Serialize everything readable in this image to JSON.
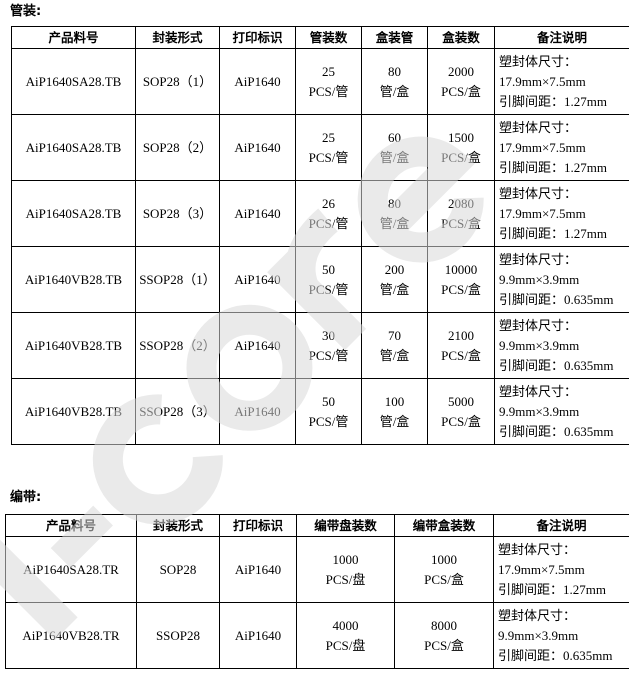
{
  "tube_section": {
    "title": "管装:",
    "headers": [
      "产品料号",
      "封装形式",
      "打印标识",
      "管装数",
      "盒装管",
      "盒装数",
      "备注说明"
    ],
    "rows": [
      {
        "part": "AiP1640SA28.TB",
        "package": "SOP28（1）",
        "mark": "AiP1640",
        "per_tube": [
          "25",
          "PCS/管"
        ],
        "tubes_per_box": [
          "80",
          "管/盒"
        ],
        "per_box": [
          "2000",
          "PCS/盒"
        ],
        "note": [
          "塑封体尺寸：",
          "17.9mm×7.5mm",
          "引脚间距：1.27mm"
        ]
      },
      {
        "part": "AiP1640SA28.TB",
        "package": "SOP28（2）",
        "mark": "AiP1640",
        "per_tube": [
          "25",
          "PCS/管"
        ],
        "tubes_per_box": [
          "60",
          "管/盒"
        ],
        "per_box": [
          "1500",
          "PCS/盒"
        ],
        "note": [
          "塑封体尺寸：",
          "17.9mm×7.5mm",
          "引脚间距：1.27mm"
        ]
      },
      {
        "part": "AiP1640SA28.TB",
        "package": "SOP28（3）",
        "mark": "AiP1640",
        "per_tube": [
          "26",
          "PCS/管"
        ],
        "tubes_per_box": [
          "80",
          "管/盒"
        ],
        "per_box": [
          "2080",
          "PCS/盒"
        ],
        "note": [
          "塑封体尺寸：",
          "17.9mm×7.5mm",
          "引脚间距：1.27mm"
        ]
      },
      {
        "part": "AiP1640VB28.TB",
        "package": "SSOP28（1）",
        "mark": "AiP1640",
        "per_tube": [
          "50",
          "PCS/管"
        ],
        "tubes_per_box": [
          "200",
          "管/盒"
        ],
        "per_box": [
          "10000",
          "PCS/盒"
        ],
        "note": [
          "塑封体尺寸：",
          "9.9mm×3.9mm",
          "引脚间距：0.635mm"
        ]
      },
      {
        "part": "AiP1640VB28.TB",
        "package": "SSOP28（2）",
        "mark": "AiP1640",
        "per_tube": [
          "30",
          "PCS/管"
        ],
        "tubes_per_box": [
          "70",
          "管/盒"
        ],
        "per_box": [
          "2100",
          "PCS/盒"
        ],
        "note": [
          "塑封体尺寸：",
          "9.9mm×3.9mm",
          "引脚间距：0.635mm"
        ]
      },
      {
        "part": "AiP1640VB28.TB",
        "package": "SSOP28（3）",
        "mark": "AiP1640",
        "per_tube": [
          "50",
          "PCS/管"
        ],
        "tubes_per_box": [
          "100",
          "管/盒"
        ],
        "per_box": [
          "5000",
          "PCS/盒"
        ],
        "note": [
          "塑封体尺寸：",
          "9.9mm×3.9mm",
          "引脚间距：0.635mm"
        ]
      }
    ]
  },
  "tape_section": {
    "title": "编带:",
    "headers": [
      "产品料号",
      "封装形式",
      "打印标识",
      "编带盘装数",
      "编带盒装数",
      "备注说明"
    ],
    "rows": [
      {
        "part": "AiP1640SA28.TR",
        "package": "SOP28",
        "mark": "AiP1640",
        "per_reel": [
          "1000",
          "PCS/盘"
        ],
        "per_box": [
          "1000",
          "PCS/盒"
        ],
        "note": [
          "塑封体尺寸：",
          "17.9mm×7.5mm",
          "引脚间距：1.27mm"
        ]
      },
      {
        "part": "AiP1640VB28.TR",
        "package": "SSOP28",
        "mark": "AiP1640",
        "per_reel": [
          "4000",
          "PCS/盘"
        ],
        "per_box": [
          "8000",
          "PCS/盒"
        ],
        "note": [
          "塑封体尺寸：",
          "9.9mm×3.9mm",
          "引脚间距：0.635mm"
        ]
      }
    ]
  },
  "watermark": {
    "text": "i-core",
    "color": "#d9d9d9"
  }
}
